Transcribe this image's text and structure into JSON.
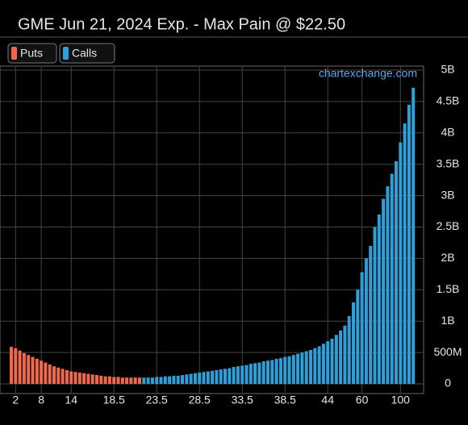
{
  "chart_data": {
    "type": "bar",
    "title": "GME Jun 21, 2024 Exp. - Max Pain @ $22.50",
    "source": "chartexchange.com",
    "categories": [
      null,
      "2",
      null,
      null,
      null,
      null,
      null,
      "8",
      null,
      null,
      null,
      null,
      null,
      null,
      "14",
      null,
      null,
      null,
      null,
      null,
      null,
      null,
      null,
      null,
      "18.5",
      null,
      null,
      null,
      null,
      null,
      null,
      null,
      null,
      null,
      "23.5",
      null,
      null,
      null,
      null,
      null,
      null,
      null,
      null,
      null,
      "28.5",
      null,
      null,
      null,
      null,
      null,
      null,
      null,
      null,
      null,
      "33.5",
      null,
      null,
      null,
      null,
      null,
      null,
      null,
      null,
      null,
      "38.5",
      null,
      null,
      null,
      null,
      null,
      null,
      null,
      null,
      null,
      "44",
      null,
      null,
      null,
      null,
      null,
      null,
      null,
      "60",
      null,
      null,
      null,
      null,
      null,
      null,
      null,
      null,
      "100",
      null,
      null,
      null
    ],
    "series": [
      {
        "name": "Puts",
        "color": "#f0694c",
        "values": [
          590000000.0,
          570000000.0,
          530000000.0,
          490000000.0,
          460000000.0,
          430000000.0,
          400000000.0,
          370000000.0,
          340000000.0,
          310000000.0,
          280000000.0,
          260000000.0,
          240000000.0,
          220000000.0,
          200000000.0,
          190000000.0,
          180000000.0,
          170000000.0,
          160000000.0,
          150000000.0,
          140000000.0,
          130000000.0,
          120000000.0,
          120000000.0,
          110000000.0,
          110000000.0,
          100000000.0,
          100000000.0,
          100000000.0,
          100000000.0,
          100000000.0,
          null,
          null,
          null,
          null,
          null,
          null,
          null,
          null,
          null,
          null,
          null,
          null,
          null,
          null,
          null,
          null,
          null,
          null,
          null,
          null,
          null,
          null,
          null,
          null,
          null,
          null,
          null,
          null,
          null,
          null,
          null,
          null,
          null,
          null,
          null,
          null,
          null,
          null,
          null,
          null,
          null,
          null,
          null,
          null,
          null,
          null,
          null,
          null,
          null,
          null,
          null,
          null,
          null,
          null,
          null,
          null,
          null,
          null,
          null,
          null,
          null,
          null,
          null,
          null
        ]
      },
      {
        "name": "Calls",
        "color": "#2f9fd9",
        "values": [
          null,
          null,
          null,
          null,
          null,
          null,
          null,
          null,
          null,
          null,
          null,
          null,
          null,
          null,
          null,
          null,
          null,
          null,
          null,
          null,
          null,
          null,
          null,
          null,
          null,
          null,
          null,
          null,
          null,
          null,
          null,
          100000000.0,
          100000000.0,
          100000000.0,
          110000000.0,
          110000000.0,
          120000000.0,
          120000000.0,
          130000000.0,
          130000000.0,
          140000000.0,
          150000000.0,
          160000000.0,
          170000000.0,
          180000000.0,
          190000000.0,
          200000000.0,
          210000000.0,
          220000000.0,
          230000000.0,
          240000000.0,
          250000000.0,
          270000000.0,
          280000000.0,
          290000000.0,
          300000000.0,
          320000000.0,
          330000000.0,
          340000000.0,
          360000000.0,
          370000000.0,
          380000000.0,
          400000000.0,
          410000000.0,
          430000000.0,
          440000000.0,
          460000000.0,
          480000000.0,
          500000000.0,
          520000000.0,
          540000000.0,
          570000000.0,
          600000000.0,
          640000000.0,
          680000000.0,
          720000000.0,
          780000000.0,
          850000000.0,
          930000000.0,
          1080000000.0,
          1300000000.0,
          1500000000.0,
          1780000000.0,
          2000000000.0,
          2200000000.0,
          2500000000.0,
          2700000000.0,
          2950000000.0,
          3150000000.0,
          3350000000.0,
          3550000000.0,
          3850000000.0,
          4150000000.0,
          4450000000.0,
          4720000000.0
        ]
      }
    ],
    "ylim": [
      0,
      5000000000
    ],
    "yticks": [
      {
        "value": 0,
        "label": "0"
      },
      {
        "value": 500000000,
        "label": "500M"
      },
      {
        "value": 1000000000,
        "label": "1B"
      },
      {
        "value": 1500000000,
        "label": "1.5B"
      },
      {
        "value": 2000000000,
        "label": "2B"
      },
      {
        "value": 2500000000,
        "label": "2.5B"
      },
      {
        "value": 3000000000,
        "label": "3B"
      },
      {
        "value": 3500000000,
        "label": "3.5B"
      },
      {
        "value": 4000000000,
        "label": "4B"
      },
      {
        "value": 4500000000,
        "label": "4.5B"
      },
      {
        "value": 5000000000,
        "label": "5B"
      }
    ],
    "grid": true
  }
}
